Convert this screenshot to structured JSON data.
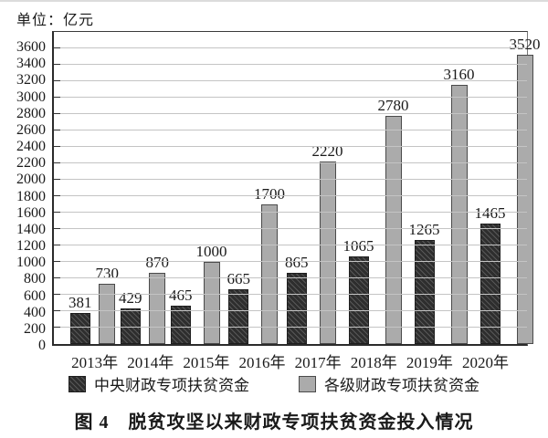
{
  "unit_label": "单位：亿元",
  "caption": "图 4　脱贫攻坚以来财政专项扶贫资金投入情况",
  "colors": {
    "dark_bar": "#2e2e2e",
    "light_bar": "#ababab",
    "gridline": "#c4c4c4",
    "axis": "#2b2b2b",
    "text": "#1a1a1a"
  },
  "chart_data": {
    "type": "bar",
    "title": "图 4　脱贫攻坚以来财政专项扶贫资金投入情况",
    "unit": "单位：亿元",
    "categories": [
      "2013年",
      "2014年",
      "2015年",
      "2016年",
      "2017年",
      "2018年",
      "2019年",
      "2020年"
    ],
    "series": [
      {
        "name": "中央财政专项扶贫资金",
        "style": "dark",
        "values": [
          381,
          429,
          465,
          665,
          865,
          1065,
          1265,
          1465
        ]
      },
      {
        "name": "各级财政专项扶贫资金",
        "style": "light",
        "values": [
          730,
          870,
          1000,
          1700,
          2220,
          2780,
          3160,
          3520
        ]
      }
    ],
    "xlabel": "",
    "ylabel": "亿元",
    "ylim": [
      0,
      3800
    ],
    "ytick_step": 200,
    "ytick_max": 3600,
    "grid": true,
    "legend_position": "bottom",
    "value_labels": true
  }
}
